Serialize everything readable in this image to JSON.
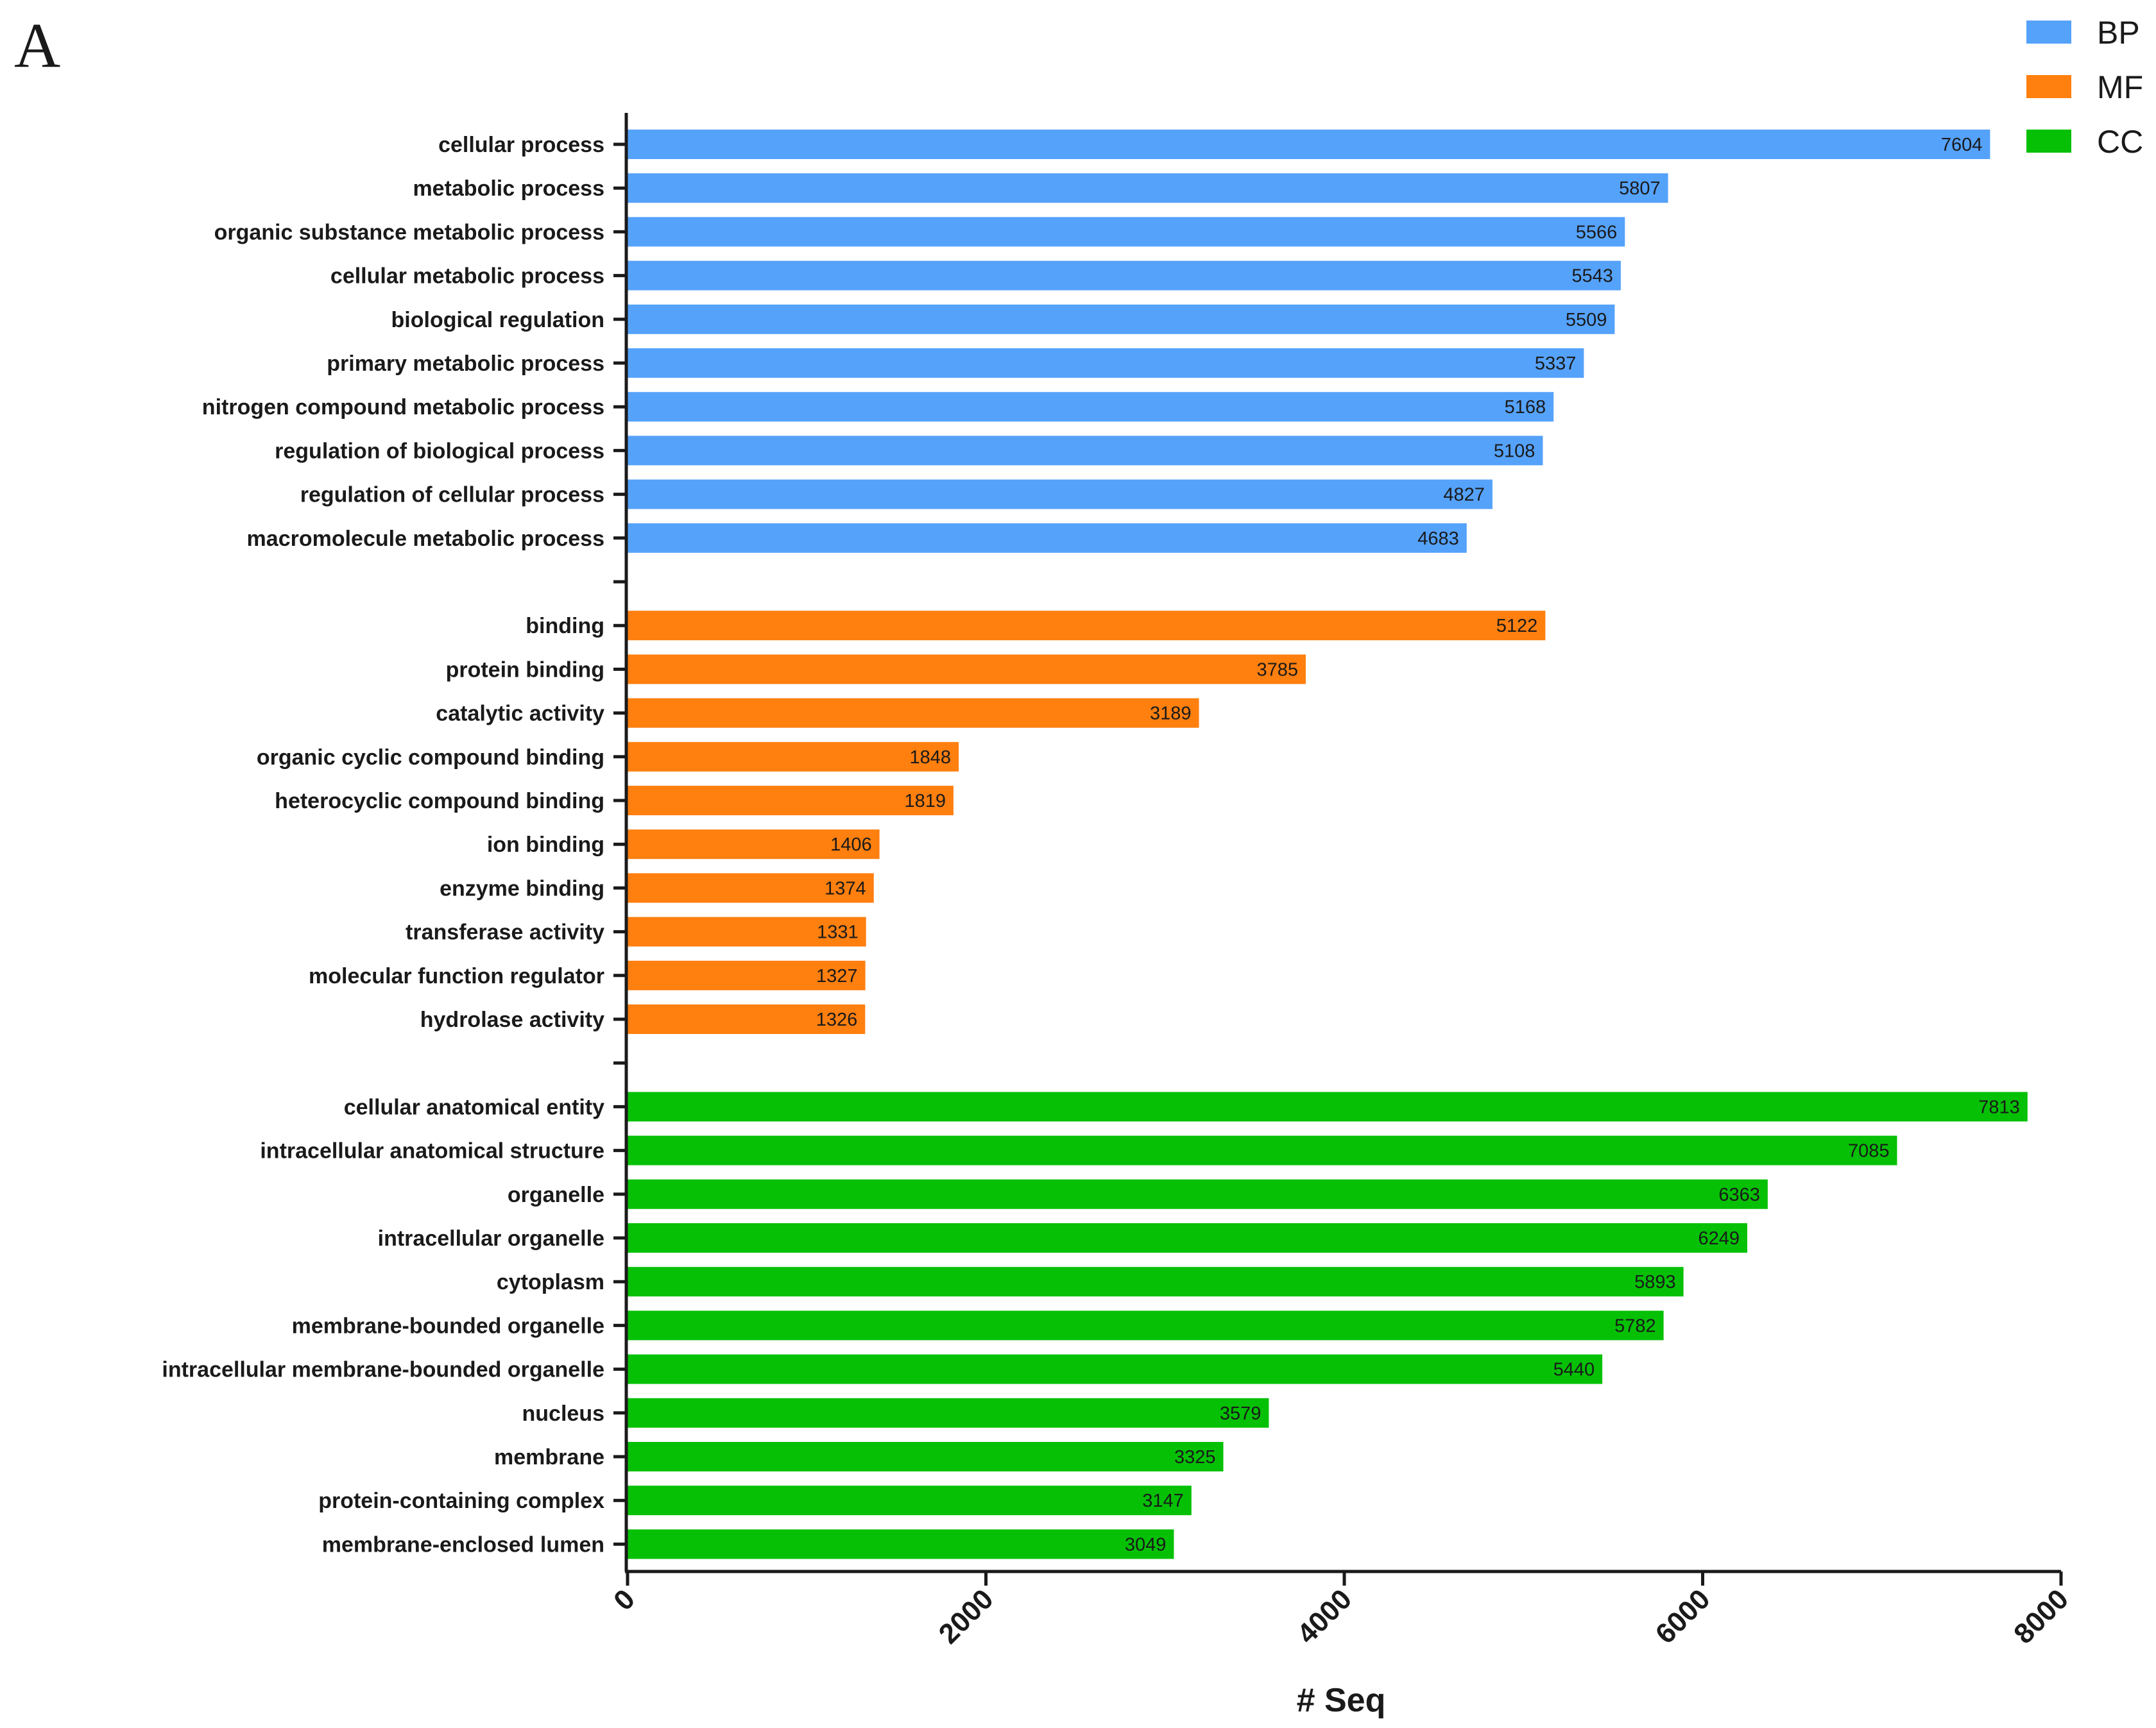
{
  "panel_label": "A",
  "chart_data": {
    "type": "bar",
    "orientation": "horizontal",
    "title": "",
    "xlabel": "# Seq",
    "ylabel": "",
    "xlim": [
      0,
      8000
    ],
    "xticks": [
      "0",
      "2000",
      "4000",
      "6000",
      "8000"
    ],
    "grid": false,
    "legend_position": "top-right",
    "groups": [
      {
        "name": "BP",
        "color": "#55A2FB",
        "categories": [
          "cellular process",
          "metabolic process",
          "organic substance metabolic process",
          "cellular metabolic process",
          "biological regulation",
          "primary metabolic process",
          "nitrogen compound metabolic process",
          "regulation of biological process",
          "regulation of cellular process",
          "macromolecule metabolic process"
        ],
        "values": [
          7604,
          5807,
          5566,
          5543,
          5509,
          5337,
          5168,
          5108,
          4827,
          4683
        ]
      },
      {
        "name": "MF",
        "color": "#FF7F0F",
        "categories": [
          "binding",
          "protein binding",
          "catalytic activity",
          "organic cyclic compound binding",
          "heterocyclic compound binding",
          "ion binding",
          "enzyme binding",
          "transferase activity",
          "molecular function regulator",
          "hydrolase activity"
        ],
        "values": [
          5122,
          3785,
          3189,
          1848,
          1819,
          1406,
          1374,
          1331,
          1327,
          1326
        ]
      },
      {
        "name": "CC",
        "color": "#06C006",
        "categories": [
          "cellular anatomical entity",
          "intracellular anatomical structure",
          "organelle",
          "intracellular organelle",
          "cytoplasm",
          "membrane-bounded organelle",
          "intracellular membrane-bounded organelle",
          "nucleus",
          "membrane",
          "protein-containing complex",
          "membrane-enclosed lumen"
        ],
        "values": [
          7813,
          7085,
          6363,
          6249,
          5893,
          5782,
          5440,
          3579,
          3325,
          3147,
          3049
        ]
      }
    ]
  }
}
